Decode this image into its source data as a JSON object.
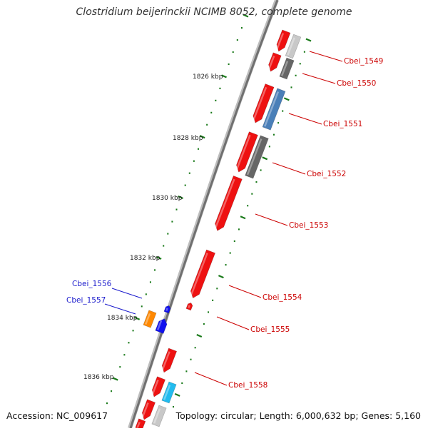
{
  "title": "Clostridium beijerinckii NCIMB 8052, complete genome",
  "footer": {
    "accession": "Accession: NC_009617",
    "topology": "Topology: circular; Length: 6,000,632 bp; Genes: 5,160"
  },
  "ticks": [
    {
      "label": "1826 kbp"
    },
    {
      "label": "1828 kbp"
    },
    {
      "label": "1830 kbp"
    },
    {
      "label": "1832 kbp"
    },
    {
      "label": "1834 kbp"
    },
    {
      "label": "1836 kbp"
    }
  ],
  "gene_labels": [
    {
      "label": "Cbei_1549",
      "color": "#cc0000"
    },
    {
      "label": "Cbei_1550",
      "color": "#cc0000"
    },
    {
      "label": "Cbei_1551",
      "color": "#cc0000"
    },
    {
      "label": "Cbei_1552",
      "color": "#cc0000"
    },
    {
      "label": "Cbei_1553",
      "color": "#cc0000"
    },
    {
      "label": "Cbei_1554",
      "color": "#cc0000"
    },
    {
      "label": "Cbei_1555",
      "color": "#cc0000"
    },
    {
      "label": "Cbei_1556",
      "color": "#1a1acc"
    },
    {
      "label": "Cbei_1557",
      "color": "#1a1acc"
    },
    {
      "label": "Cbei_1558",
      "color": "#cc0000"
    }
  ],
  "colors": {
    "forward_gene": "#ee1111",
    "reverse_gene": "#1111ee",
    "orange_gene": "#ff8800",
    "gray_gene": "#666666",
    "light_gray_gene": "#c8c8c8",
    "steel_blue_gene": "#4a7fb8",
    "cyan_gene": "#22bbee",
    "backbone": "#888888",
    "tick": "#1a7a1a"
  }
}
